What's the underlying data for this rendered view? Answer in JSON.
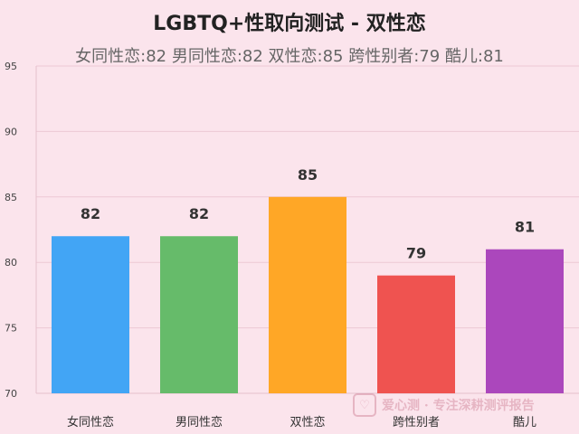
{
  "title": "LGBTQ+性取向测试 - 双性恋",
  "subtitle": "女同性恋:82 男同性恋:82 双性恋:85 跨性别者:79 酷儿:81",
  "watermark": {
    "text": "爱心测 · 专注深耕测评报告",
    "icon": "heart-icon"
  },
  "chart_data": {
    "type": "bar",
    "categories": [
      "女同性恋",
      "男同性恋",
      "双性恋",
      "跨性别者",
      "酷儿"
    ],
    "values": [
      82,
      82,
      85,
      79,
      81
    ],
    "colors": [
      "#42a5f5",
      "#66bb6a",
      "#ffa726",
      "#ef5350",
      "#ab47bc"
    ],
    "ylim": [
      70,
      95
    ],
    "yticks": [
      70,
      75,
      80,
      85,
      90,
      95
    ],
    "grid": true,
    "data_labels": true
  }
}
